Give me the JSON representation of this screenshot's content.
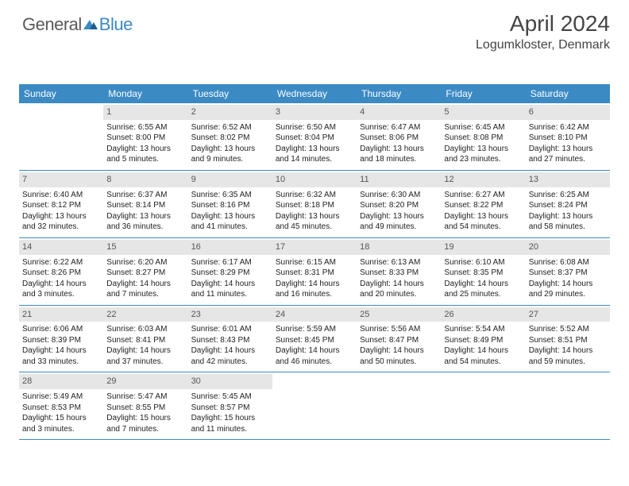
{
  "logo": {
    "part1": "General",
    "part2": "Blue"
  },
  "header": {
    "title": "April 2024",
    "location": "Logumkloster, Denmark"
  },
  "colors": {
    "header_bg": "#3b8ac4",
    "daynum_bg": "#e6e6e6",
    "border": "#3b8ac4",
    "text": "#222222",
    "title_text": "#444444"
  },
  "weekdays": [
    "Sunday",
    "Monday",
    "Tuesday",
    "Wednesday",
    "Thursday",
    "Friday",
    "Saturday"
  ],
  "weeks": [
    [
      null,
      {
        "day": "1",
        "sunrise": "Sunrise: 6:55 AM",
        "sunset": "Sunset: 8:00 PM",
        "d1": "Daylight: 13 hours",
        "d2": "and 5 minutes."
      },
      {
        "day": "2",
        "sunrise": "Sunrise: 6:52 AM",
        "sunset": "Sunset: 8:02 PM",
        "d1": "Daylight: 13 hours",
        "d2": "and 9 minutes."
      },
      {
        "day": "3",
        "sunrise": "Sunrise: 6:50 AM",
        "sunset": "Sunset: 8:04 PM",
        "d1": "Daylight: 13 hours",
        "d2": "and 14 minutes."
      },
      {
        "day": "4",
        "sunrise": "Sunrise: 6:47 AM",
        "sunset": "Sunset: 8:06 PM",
        "d1": "Daylight: 13 hours",
        "d2": "and 18 minutes."
      },
      {
        "day": "5",
        "sunrise": "Sunrise: 6:45 AM",
        "sunset": "Sunset: 8:08 PM",
        "d1": "Daylight: 13 hours",
        "d2": "and 23 minutes."
      },
      {
        "day": "6",
        "sunrise": "Sunrise: 6:42 AM",
        "sunset": "Sunset: 8:10 PM",
        "d1": "Daylight: 13 hours",
        "d2": "and 27 minutes."
      }
    ],
    [
      {
        "day": "7",
        "sunrise": "Sunrise: 6:40 AM",
        "sunset": "Sunset: 8:12 PM",
        "d1": "Daylight: 13 hours",
        "d2": "and 32 minutes."
      },
      {
        "day": "8",
        "sunrise": "Sunrise: 6:37 AM",
        "sunset": "Sunset: 8:14 PM",
        "d1": "Daylight: 13 hours",
        "d2": "and 36 minutes."
      },
      {
        "day": "9",
        "sunrise": "Sunrise: 6:35 AM",
        "sunset": "Sunset: 8:16 PM",
        "d1": "Daylight: 13 hours",
        "d2": "and 41 minutes."
      },
      {
        "day": "10",
        "sunrise": "Sunrise: 6:32 AM",
        "sunset": "Sunset: 8:18 PM",
        "d1": "Daylight: 13 hours",
        "d2": "and 45 minutes."
      },
      {
        "day": "11",
        "sunrise": "Sunrise: 6:30 AM",
        "sunset": "Sunset: 8:20 PM",
        "d1": "Daylight: 13 hours",
        "d2": "and 49 minutes."
      },
      {
        "day": "12",
        "sunrise": "Sunrise: 6:27 AM",
        "sunset": "Sunset: 8:22 PM",
        "d1": "Daylight: 13 hours",
        "d2": "and 54 minutes."
      },
      {
        "day": "13",
        "sunrise": "Sunrise: 6:25 AM",
        "sunset": "Sunset: 8:24 PM",
        "d1": "Daylight: 13 hours",
        "d2": "and 58 minutes."
      }
    ],
    [
      {
        "day": "14",
        "sunrise": "Sunrise: 6:22 AM",
        "sunset": "Sunset: 8:26 PM",
        "d1": "Daylight: 14 hours",
        "d2": "and 3 minutes."
      },
      {
        "day": "15",
        "sunrise": "Sunrise: 6:20 AM",
        "sunset": "Sunset: 8:27 PM",
        "d1": "Daylight: 14 hours",
        "d2": "and 7 minutes."
      },
      {
        "day": "16",
        "sunrise": "Sunrise: 6:17 AM",
        "sunset": "Sunset: 8:29 PM",
        "d1": "Daylight: 14 hours",
        "d2": "and 11 minutes."
      },
      {
        "day": "17",
        "sunrise": "Sunrise: 6:15 AM",
        "sunset": "Sunset: 8:31 PM",
        "d1": "Daylight: 14 hours",
        "d2": "and 16 minutes."
      },
      {
        "day": "18",
        "sunrise": "Sunrise: 6:13 AM",
        "sunset": "Sunset: 8:33 PM",
        "d1": "Daylight: 14 hours",
        "d2": "and 20 minutes."
      },
      {
        "day": "19",
        "sunrise": "Sunrise: 6:10 AM",
        "sunset": "Sunset: 8:35 PM",
        "d1": "Daylight: 14 hours",
        "d2": "and 25 minutes."
      },
      {
        "day": "20",
        "sunrise": "Sunrise: 6:08 AM",
        "sunset": "Sunset: 8:37 PM",
        "d1": "Daylight: 14 hours",
        "d2": "and 29 minutes."
      }
    ],
    [
      {
        "day": "21",
        "sunrise": "Sunrise: 6:06 AM",
        "sunset": "Sunset: 8:39 PM",
        "d1": "Daylight: 14 hours",
        "d2": "and 33 minutes."
      },
      {
        "day": "22",
        "sunrise": "Sunrise: 6:03 AM",
        "sunset": "Sunset: 8:41 PM",
        "d1": "Daylight: 14 hours",
        "d2": "and 37 minutes."
      },
      {
        "day": "23",
        "sunrise": "Sunrise: 6:01 AM",
        "sunset": "Sunset: 8:43 PM",
        "d1": "Daylight: 14 hours",
        "d2": "and 42 minutes."
      },
      {
        "day": "24",
        "sunrise": "Sunrise: 5:59 AM",
        "sunset": "Sunset: 8:45 PM",
        "d1": "Daylight: 14 hours",
        "d2": "and 46 minutes."
      },
      {
        "day": "25",
        "sunrise": "Sunrise: 5:56 AM",
        "sunset": "Sunset: 8:47 PM",
        "d1": "Daylight: 14 hours",
        "d2": "and 50 minutes."
      },
      {
        "day": "26",
        "sunrise": "Sunrise: 5:54 AM",
        "sunset": "Sunset: 8:49 PM",
        "d1": "Daylight: 14 hours",
        "d2": "and 54 minutes."
      },
      {
        "day": "27",
        "sunrise": "Sunrise: 5:52 AM",
        "sunset": "Sunset: 8:51 PM",
        "d1": "Daylight: 14 hours",
        "d2": "and 59 minutes."
      }
    ],
    [
      {
        "day": "28",
        "sunrise": "Sunrise: 5:49 AM",
        "sunset": "Sunset: 8:53 PM",
        "d1": "Daylight: 15 hours",
        "d2": "and 3 minutes."
      },
      {
        "day": "29",
        "sunrise": "Sunrise: 5:47 AM",
        "sunset": "Sunset: 8:55 PM",
        "d1": "Daylight: 15 hours",
        "d2": "and 7 minutes."
      },
      {
        "day": "30",
        "sunrise": "Sunrise: 5:45 AM",
        "sunset": "Sunset: 8:57 PM",
        "d1": "Daylight: 15 hours",
        "d2": "and 11 minutes."
      },
      null,
      null,
      null,
      null
    ]
  ]
}
